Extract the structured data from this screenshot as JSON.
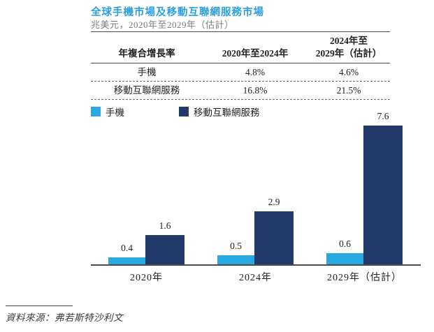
{
  "header": {
    "title": "全球手機市場及移動互聯網服務市場",
    "subtitle": "兆美元，2020年至2029年（估計）"
  },
  "table": {
    "col1_header": "年複合增長率",
    "col2_header": "2020年至2024年",
    "col3_header_line1": "2024年至",
    "col3_header_line2": "2029年（估計）",
    "rows": [
      {
        "label": "手機",
        "cagr_2020_2024": "4.8%",
        "cagr_2024_2029": "4.6%"
      },
      {
        "label": "移動互聯網服務",
        "cagr_2020_2024": "16.8%",
        "cagr_2024_2029": "21.5%"
      }
    ]
  },
  "legend": [
    {
      "label": "手機",
      "color": "#29a9e1"
    },
    {
      "label": "移動互聯網服務",
      "color": "#213a69"
    }
  ],
  "chart_data": {
    "type": "bar",
    "categories": [
      "2020年",
      "2024年",
      "2029年（估計）"
    ],
    "series": [
      {
        "name": "手機",
        "color": "#29a9e1",
        "values": [
          0.4,
          0.5,
          0.6
        ]
      },
      {
        "name": "移動互聯網服務",
        "color": "#213a69",
        "values": [
          1.6,
          2.9,
          7.6
        ]
      }
    ],
    "ylim": [
      0,
      8
    ],
    "unit": "兆美元",
    "grid": false,
    "legend_position": "top-left",
    "value_labels": true
  },
  "source": "資料來源：弗若斯特沙利文",
  "colors": {
    "title": "#2b9fe2",
    "subtitle": "#7d7d7d",
    "axis": "#4a4a4a"
  }
}
